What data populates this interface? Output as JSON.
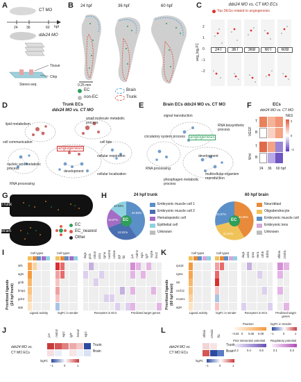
{
  "panels": {
    "A": {
      "label": "A",
      "ct_mo": "CT MO",
      "ddx24_mo": "ddx24 MO",
      "times": [
        "24",
        "36",
        "60"
      ],
      "unit": "hpf",
      "tissue": "Tissue",
      "chip": "Chip",
      "method": "Stereo-seq"
    },
    "B": {
      "label": "B",
      "stages": [
        "24 hpf",
        "36 hpf",
        "60 hpf"
      ],
      "scale": "0.25 mm",
      "legend": {
        "ec": "EC",
        "non_ec": "non-EC",
        "brain": "Brain",
        "trunk": "Trunk"
      }
    },
    "C": {
      "label": "C",
      "title": "ddx24 MO vs. CT MO ECs",
      "legend": "Top DEGs related to angiogenesis",
      "ylabel": "avg_log₂FC",
      "groups": [
        "24T",
        "36T",
        "36B",
        "60T",
        "60B"
      ],
      "yticks": [
        "2",
        "1",
        "0",
        "−1",
        "−2"
      ]
    },
    "D": {
      "label": "D",
      "title_line1": "Trunk ECs",
      "title_line2": "ddx24 MO vs. CT MO",
      "terms": [
        "lipid metabolism",
        "small molecule metabolic process",
        "cell communication",
        "cell fate",
        "angiogenesis",
        "cellular respiration",
        "nucleic acid metabolic process",
        "development",
        "cellular localization",
        "RNA processing"
      ]
    },
    "E": {
      "label": "E",
      "title": "Brain ECs ddx24 MO vs. CT MO",
      "terms": [
        "signal transduction",
        "RNA biosynthetic process",
        "circulatory system process",
        "angiogenesis",
        "development",
        "RNA processing",
        "phosphagen metabolic process",
        "multicellular organism reproduction"
      ]
    },
    "F": {
      "label": "F",
      "title_line1": "ECs",
      "title_line2": "ddx24 MO vs. CT MO",
      "rows": [
        "VEGF",
        "Wnt"
      ],
      "sub": [
        "T",
        "B"
      ],
      "cols": [
        "24",
        "36",
        "60 hpf"
      ],
      "nes_label": "NES",
      "nes_ticks": [
        "2",
        "0",
        "−2"
      ]
    },
    "G": {
      "label": "G",
      "trunk": "Trunk",
      "brain": "Brain",
      "legend": [
        "EC",
        "EC_nearest",
        "Other"
      ]
    },
    "H": {
      "label": "H",
      "left_title": "24 hpf trunk",
      "right_title": "60 hpf brain",
      "center": "EC",
      "left_legend": [
        "Embryonic muscle cell 1",
        "Embryonic muscle cell 2",
        "Hematopoietic cell",
        "Epithelial cell",
        "Unknown"
      ],
      "right_legend": [
        "Neuroblast",
        "Oligodendrocyte",
        "Embryonic muscle cell",
        "Embryonic lens",
        "Unknown"
      ],
      "left_pcts": [
        "40.63%",
        "24.81%",
        "18.67%",
        "12.93%"
      ],
      "right_pcts": [
        "44.26%",
        "21.51%",
        "23.07%"
      ]
    },
    "I": {
      "label": "I",
      "ylabel_line1": "Prioritized ligands",
      "ylabel_line2": "(24 hpf trunk)",
      "ligands": [
        "shh",
        "agrn",
        "gmb",
        "bmp1",
        "gdc3",
        "app"
      ],
      "header": "Cell types",
      "receptors": [
        "dag1",
        "ptch",
        "robo3",
        "sdc1",
        "rgma",
        "notch3",
        "col4a1",
        "ggt",
        "fld"
      ],
      "targets": [
        "jun",
        "mdm2",
        "egr1",
        "lgf7",
        "myh9",
        "lmo2"
      ],
      "footer": [
        "Ligand activity",
        "logFC in sender",
        "Receptors in ECs",
        "Predicted target genes"
      ]
    },
    "J": {
      "label": "J",
      "rowlabel_line1": "ddx24 MO vs.",
      "rowlabel_line2": "CT MO ECs",
      "genes": [
        "jun",
        "mdm2",
        "egr1",
        "lgf7",
        "lomo2",
        "egr1"
      ],
      "rows": [
        "Trunk",
        "Brain"
      ],
      "scale_title": "logFC",
      "scale_ticks": [
        "−1",
        "0",
        "1"
      ]
    },
    "K": {
      "label": "K",
      "ylabel_line1": "Prioritized ligands",
      "ylabel_line2": "(60 hpf brain)",
      "ligands": [
        "rps19",
        "rgma",
        "sst",
        "cxcl12",
        "ncam1",
        "agrn"
      ],
      "header": "Cell types",
      "receptors": [
        "dag1",
        "a1b1",
        "rpsa",
        "neo1",
        "cdh8",
        "dchb1"
      ],
      "targets": [
        "nfkbia",
        "ctnnb1"
      ],
      "footer": [
        "Ligand activity",
        "logFC in sender",
        "Receptors in ECs",
        "Predicted target genes"
      ],
      "legend": {
        "pearson": "Pearson",
        "pearson_ticks": [
          "−0.02",
          "0",
          "0.05",
          "0.09"
        ],
        "logfc": "logFC in Sender",
        "logfc_ticks": [
          "−1",
          "0",
          "1"
        ],
        "prior": "Prior interaction potential",
        "prior_ticks": [
          "0.2",
          "0.4",
          "0.6"
        ],
        "reg": "Regulatory potential",
        "reg_ticks": [
          "0.1",
          "0.3"
        ]
      }
    },
    "L": {
      "label": "L",
      "rowlabel_line1": "ddx24 MO vs.",
      "rowlabel_line2": "CT MO ECs",
      "genes": [
        "nfkbia",
        "ctnnb1",
        "fli1"
      ],
      "rows": [
        "Trunk",
        "Brain"
      ],
      "scale_title": "logFC",
      "scale_ticks": [
        "−1",
        "0",
        "1"
      ]
    }
  },
  "colors": {
    "ec": "#2e9e5b",
    "trunk": "#e05a4a",
    "brain": "#5aa7d8",
    "enriched": "#c0504d",
    "network": "#5b8fc7"
  }
}
